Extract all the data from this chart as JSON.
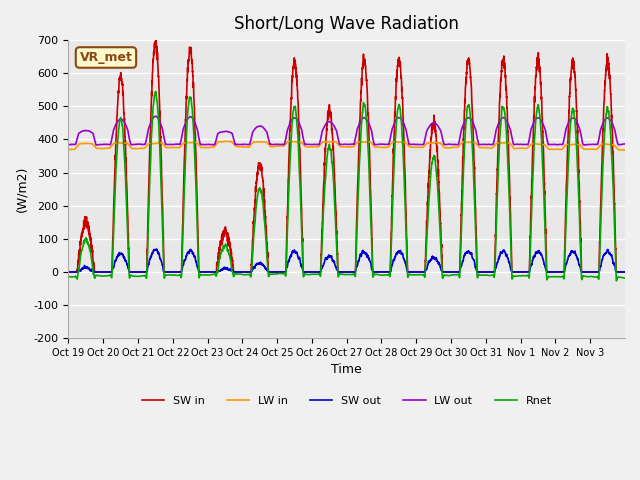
{
  "title": "Short/Long Wave Radiation",
  "xlabel": "Time",
  "ylabel": "(W/m2)",
  "ylim": [
    -200,
    700
  ],
  "yticks": [
    -200,
    -100,
    0,
    100,
    200,
    300,
    400,
    500,
    600,
    700
  ],
  "x_tick_labels": [
    "Oct 19",
    "Oct 20",
    "Oct 21",
    "Oct 22",
    "Oct 23",
    "Oct 24",
    "Oct 25",
    "Oct 26",
    "Oct 27",
    "Oct 28",
    "Oct 29",
    "Oct 30",
    "Oct 31",
    "Nov 1",
    "Nov 2",
    "Nov 3"
  ],
  "legend_labels": [
    "SW in",
    "LW in",
    "SW out",
    "LW out",
    "Rnet"
  ],
  "legend_colors": [
    "#cc0000",
    "#ff9900",
    "#0000cc",
    "#9900cc",
    "#00aa00"
  ],
  "line_widths": [
    1.2,
    1.2,
    1.2,
    1.2,
    1.2
  ],
  "annotation_text": "VR_met",
  "background_color": "#e8e8e8",
  "fig_color": "#f0f0f0",
  "grid_color": "#ffffff",
  "n_points": 3840,
  "days": 16,
  "sw_peaks": [
    150,
    590,
    690,
    670,
    120,
    325,
    635,
    490,
    640,
    640,
    450,
    640,
    640,
    640,
    635,
    635
  ]
}
